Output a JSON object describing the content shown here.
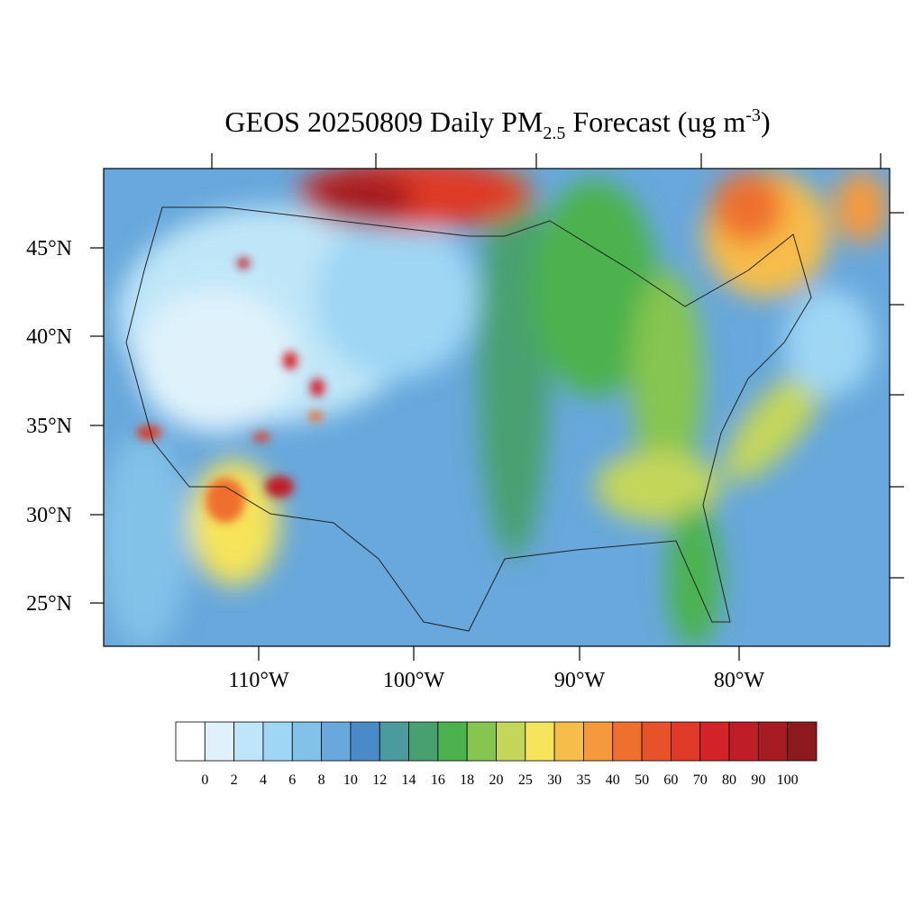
{
  "title": [
    "GEOS 20250809 Daily PM",
    "2.5",
    " Forecast (ug m",
    "-3",
    ")"
  ],
  "latitude_labels": [
    "45°N",
    "40°N",
    "35°N",
    "30°N",
    "25°N"
  ],
  "longitude_labels": [
    "110°W",
    "100°W",
    "90°W",
    "80°W"
  ],
  "colorbar": {
    "labels": [
      0,
      2,
      4,
      6,
      8,
      10,
      12,
      14,
      16,
      18,
      20,
      25,
      30,
      35,
      40,
      50,
      60,
      70,
      80,
      90,
      100
    ],
    "colors": [
      "#ffffff",
      "#dff2fc",
      "#bfe6f8",
      "#9ed6f4",
      "#82c1e8",
      "#68a8dc",
      "#4a8ac8",
      "#4a9a9e",
      "#48a070",
      "#4cb24e",
      "#86c550",
      "#c4d65a",
      "#f6e45a",
      "#f7bd4a",
      "#f59a3c",
      "#ef6f2e",
      "#e8522a",
      "#de3a27",
      "#d42229",
      "#bf1e26",
      "#a61b22",
      "#8c1a1c"
    ]
  }
}
